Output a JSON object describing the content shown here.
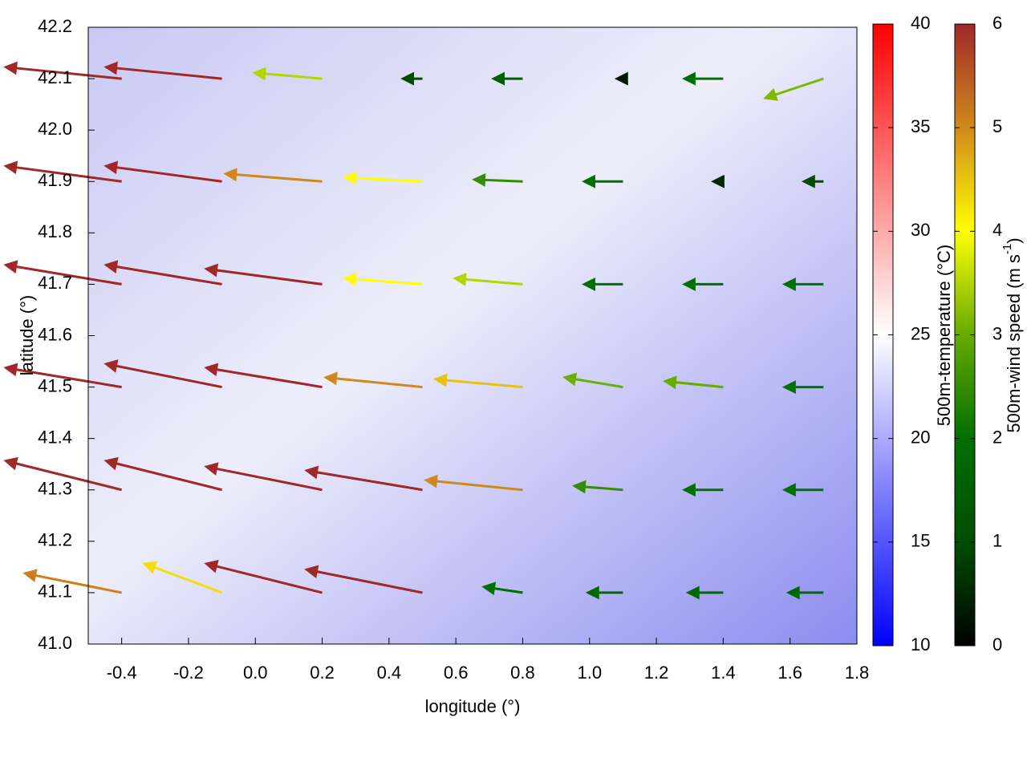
{
  "chart_data": {
    "type": "quiver",
    "xlabel": "longitude (°)",
    "ylabel": "latitude (°)",
    "xlim": [
      -0.5,
      1.8
    ],
    "ylim": [
      41.0,
      42.2
    ],
    "xticks": [
      -0.4,
      -0.2,
      {
        "value": 0,
        "label": "0.0"
      },
      0.2,
      0.4,
      0.6,
      0.8,
      {
        "value": 1,
        "label": "1.0"
      },
      1.2,
      1.4,
      1.6,
      1.8
    ],
    "yticks": [
      {
        "value": 41,
        "label": "41.0"
      },
      41.1,
      41.2,
      41.3,
      41.4,
      41.5,
      41.6,
      41.7,
      41.8,
      41.9,
      {
        "value": 42,
        "label": "42.0"
      },
      42.1,
      42.2
    ],
    "x": [
      -0.4,
      -0.1,
      0.2,
      0.5,
      0.8,
      1.1,
      1.4,
      1.7,
      -0.4,
      -0.1,
      0.2,
      0.5,
      0.8,
      1.1,
      1.4,
      1.7,
      -0.4,
      -0.1,
      0.2,
      0.5,
      0.8,
      1.1,
      1.4,
      1.7,
      -0.4,
      -0.1,
      0.2,
      0.5,
      0.8,
      1.1,
      1.4,
      1.7,
      -0.4,
      -0.1,
      0.2,
      0.5,
      0.8,
      1.1,
      1.4,
      1.7,
      -0.4,
      -0.1,
      0.2,
      0.5,
      0.8,
      1.1,
      1.4,
      1.7
    ],
    "y": [
      42.1,
      42.1,
      42.1,
      42.1,
      42.1,
      42.1,
      42.1,
      42.1,
      41.9,
      41.9,
      41.9,
      41.9,
      41.9,
      41.9,
      41.9,
      41.9,
      41.7,
      41.7,
      41.7,
      41.7,
      41.7,
      41.7,
      41.7,
      41.7,
      41.5,
      41.5,
      41.5,
      41.5,
      41.5,
      41.5,
      41.5,
      41.5,
      41.3,
      41.3,
      41.3,
      41.3,
      41.3,
      41.3,
      41.3,
      41.3,
      41.1,
      41.1,
      41.1,
      41.1,
      41.1,
      41.1,
      41.1,
      41.1
    ],
    "u": [
      -6,
      -6,
      -3.5,
      -1,
      -1.5,
      -0.3,
      -2,
      -3,
      -6,
      -6,
      -5,
      -4,
      -2.5,
      -2,
      -0.5,
      -1,
      -6,
      -6,
      -6,
      -4,
      -3.5,
      -2,
      -2,
      -2,
      -6,
      -6,
      -6,
      -5,
      -4.5,
      -3,
      -3,
      -2,
      -6,
      -6,
      -6,
      -6,
      -5,
      -2.5,
      -2,
      -2,
      -5,
      -4,
      -6,
      -6,
      -2,
      -1.8,
      -1.8,
      -1.8
    ],
    "v": [
      0.6,
      0.6,
      0.3,
      0,
      0,
      0,
      0,
      -1,
      0.8,
      0.8,
      0.4,
      0.2,
      0.1,
      0,
      0,
      0,
      1,
      1,
      0.8,
      0.3,
      0.3,
      0,
      0,
      0,
      1,
      1.2,
      1,
      0.5,
      0.4,
      0.5,
      0.3,
      0,
      1.5,
      1.5,
      1.2,
      1,
      0.5,
      0.2,
      0,
      0,
      1,
      1.5,
      1.5,
      1.2,
      0.3,
      0,
      0,
      0
    ],
    "colorbars": [
      {
        "label": [
          "500m-temperature (°C)"
        ],
        "lim": [
          10,
          40
        ],
        "ticks": [
          10,
          15,
          20,
          25,
          30,
          35,
          40
        ],
        "colors": [
          "#0000ff",
          "#ffffff",
          "#ff0000"
        ]
      },
      {
        "label": [
          "500m-wind speed (m s",
          "-1",
          ")"
        ],
        "lim": [
          0,
          6
        ],
        "ticks": [
          0,
          1,
          2,
          3,
          4,
          5,
          6
        ],
        "colors": [
          "#000000",
          "#004d00",
          "#007000",
          "#66aa00",
          "#ffff00",
          "#d08a1c",
          "#a02828"
        ]
      }
    ]
  }
}
